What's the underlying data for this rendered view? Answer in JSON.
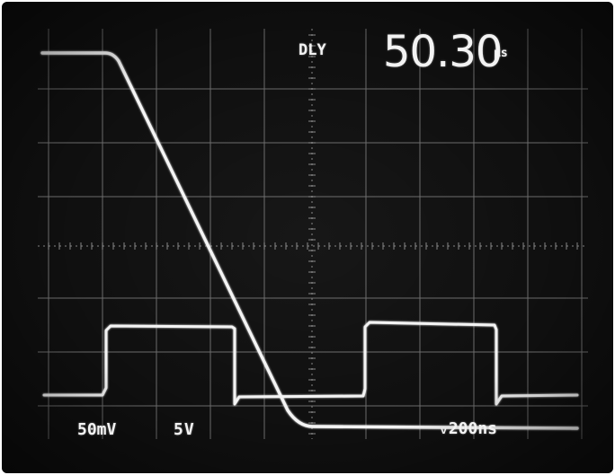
{
  "display": {
    "delay_label": "DLY",
    "delay_value": "50.30",
    "delay_unit": "μs",
    "ch1_scale": "50mV",
    "ch2_scale": "5V",
    "timebase": "ᵥ200ns"
  },
  "colors": {
    "screen_background": "#0f0f0f",
    "graticule": "#8a8a8a",
    "trace": "#f4f4f4",
    "readout_text": "#f3f3f3"
  }
}
